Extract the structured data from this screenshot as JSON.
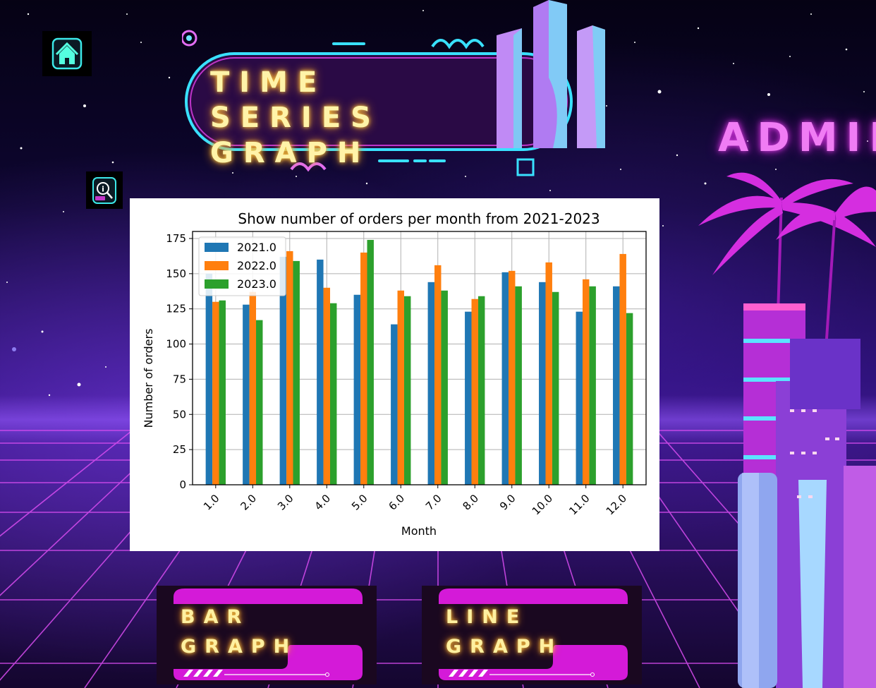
{
  "page": {
    "title": "TIME SERIES GRAPH",
    "title_lines": [
      "TIME SERIES",
      "GRAPH"
    ],
    "user_label": "ADMIN"
  },
  "icons": {
    "home": "home-icon",
    "info": "info-search-icon"
  },
  "nav": {
    "bar_lines": [
      "BAR",
      "GRAPH"
    ],
    "line_lines": [
      "LINE",
      "GRAPH"
    ]
  },
  "colors": {
    "series_2021": "#1f77b4",
    "series_2022": "#ff7f0e",
    "series_2023": "#2ca02c",
    "neon_pink": "#e33ee8",
    "neon_cyan": "#3ee6ff",
    "title_gold": "#fff3a8"
  },
  "chart_data": {
    "type": "bar",
    "title": "Show number of orders per month from 2021-2023",
    "xlabel": "Month",
    "ylabel": "Number of orders",
    "ylim": [
      0,
      180
    ],
    "yticks": [
      0,
      25,
      50,
      75,
      100,
      125,
      150,
      175
    ],
    "grid": true,
    "legend_position": "top-left",
    "categories": [
      "1.0",
      "2.0",
      "3.0",
      "4.0",
      "5.0",
      "6.0",
      "7.0",
      "8.0",
      "9.0",
      "10.0",
      "11.0",
      "12.0"
    ],
    "series": [
      {
        "name": "2021.0",
        "color": "#1f77b4",
        "values": [
          150,
          128,
          162,
          160,
          135,
          114,
          144,
          123,
          151,
          144,
          123,
          141
        ]
      },
      {
        "name": "2022.0",
        "color": "#ff7f0e",
        "values": [
          130,
          137,
          166,
          140,
          165,
          138,
          156,
          132,
          152,
          158,
          146,
          164
        ]
      },
      {
        "name": "2023.0",
        "color": "#2ca02c",
        "values": [
          131,
          117,
          159,
          129,
          174,
          134,
          138,
          134,
          141,
          137,
          141,
          122
        ]
      }
    ]
  }
}
